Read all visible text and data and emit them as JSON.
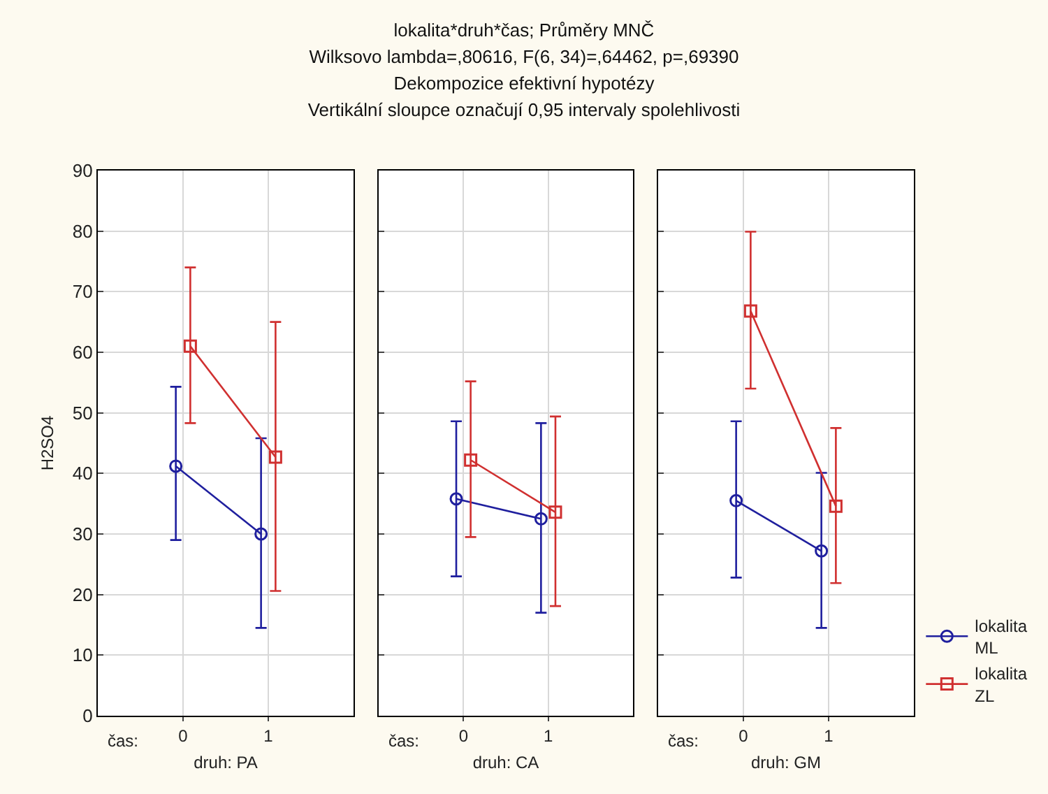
{
  "chart_data": [
    {
      "type": "line",
      "xlabel": "druh: PA",
      "ylabel": "H2SO4",
      "annotations": [
        "čas:"
      ],
      "categories": [
        "0",
        "1"
      ],
      "ylim": [
        0,
        90
      ],
      "yticks": [
        0,
        10,
        20,
        30,
        40,
        50,
        60,
        70,
        80,
        90
      ],
      "grid": true,
      "legend": false,
      "series": [
        {
          "color": "#1f1f9e",
          "marker": "circle",
          "values": [
            41.2,
            30.0
          ],
          "errors": [
            [
              29.0,
              54.3
            ],
            [
              14.5,
              45.8
            ]
          ]
        },
        {
          "color": "#d03030",
          "marker": "square",
          "values": [
            61.0,
            42.7
          ],
          "errors": [
            [
              48.3,
              74.0
            ],
            [
              20.6,
              65.0
            ]
          ]
        }
      ]
    },
    {
      "type": "line",
      "title": "lokalita*druh*čas; Průměry MNČ",
      "subtitle": "Wilksovo lambda=,80616, F(6, 34)=,64462, p=,69390\nDekompozice efektivní hypotézy\nVertikální sloupce označují 0,95 intervaly spolehlivosti",
      "xlabel": "druh: CA",
      "annotations": [
        "čas:"
      ],
      "categories": [
        "0",
        "1"
      ],
      "ylim": [
        0,
        90
      ],
      "yticks": [
        0,
        10,
        20,
        30,
        40,
        50,
        60,
        70,
        80,
        90
      ],
      "grid": true,
      "legend": false,
      "tick_labels": "x",
      "series": [
        {
          "color": "#1f1f9e",
          "marker": "circle",
          "values": [
            35.8,
            32.5
          ],
          "errors": [
            [
              23.0,
              48.6
            ],
            [
              17.0,
              48.3
            ]
          ]
        },
        {
          "color": "#d03030",
          "marker": "square",
          "values": [
            42.2,
            33.6
          ],
          "errors": [
            [
              29.5,
              55.2
            ],
            [
              18.1,
              49.4
            ]
          ]
        }
      ]
    },
    {
      "type": "line",
      "xlabel": "druh: GM",
      "annotations": [
        "čas:"
      ],
      "categories": [
        "0",
        "1"
      ],
      "ylim": [
        0,
        90
      ],
      "yticks": [
        0,
        10,
        20,
        30,
        40,
        50,
        60,
        70,
        80,
        90
      ],
      "grid": true,
      "legend": "bottom right",
      "tick_labels": "x",
      "series": [
        {
          "name": "lokalita ML",
          "color": "#1f1f9e",
          "marker": "circle",
          "values": [
            35.5,
            27.2
          ],
          "errors": [
            [
              22.8,
              48.6
            ],
            [
              14.5,
              40.1
            ]
          ]
        },
        {
          "name": "lokalita ZL",
          "color": "#d03030",
          "marker": "square",
          "values": [
            66.8,
            34.6
          ],
          "errors": [
            [
              54.0,
              79.9
            ],
            [
              21.9,
              47.5
            ]
          ]
        }
      ]
    }
  ]
}
